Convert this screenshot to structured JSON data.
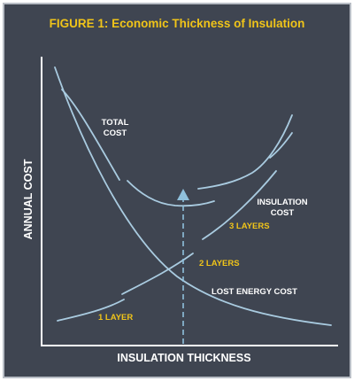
{
  "figure": {
    "title": "FIGURE 1: Economic Thickness of Insulation",
    "y_axis_label": "ANNUAL COST",
    "x_axis_label": "INSULATION THICKNESS",
    "curves": {
      "total_cost": {
        "label_line1": "TOTAL",
        "label_line2": "COST"
      },
      "insulation_cost": {
        "label_line1": "INSULATION",
        "label_line2": "COST"
      },
      "lost_energy_cost": {
        "label": "LOST ENERGY COST"
      }
    },
    "layer_labels": {
      "one": "1 LAYER",
      "two": "2 LAYERS",
      "three": "3 LAYERS"
    }
  },
  "colors": {
    "background": "#3f4551",
    "border": "#b8bdc5",
    "title": "#f0c419",
    "curve": "#a9cbe0",
    "axis": "#ffffff",
    "label": "#ffffff",
    "layer_label": "#f0c419",
    "arrow": "#8fc0dc"
  }
}
